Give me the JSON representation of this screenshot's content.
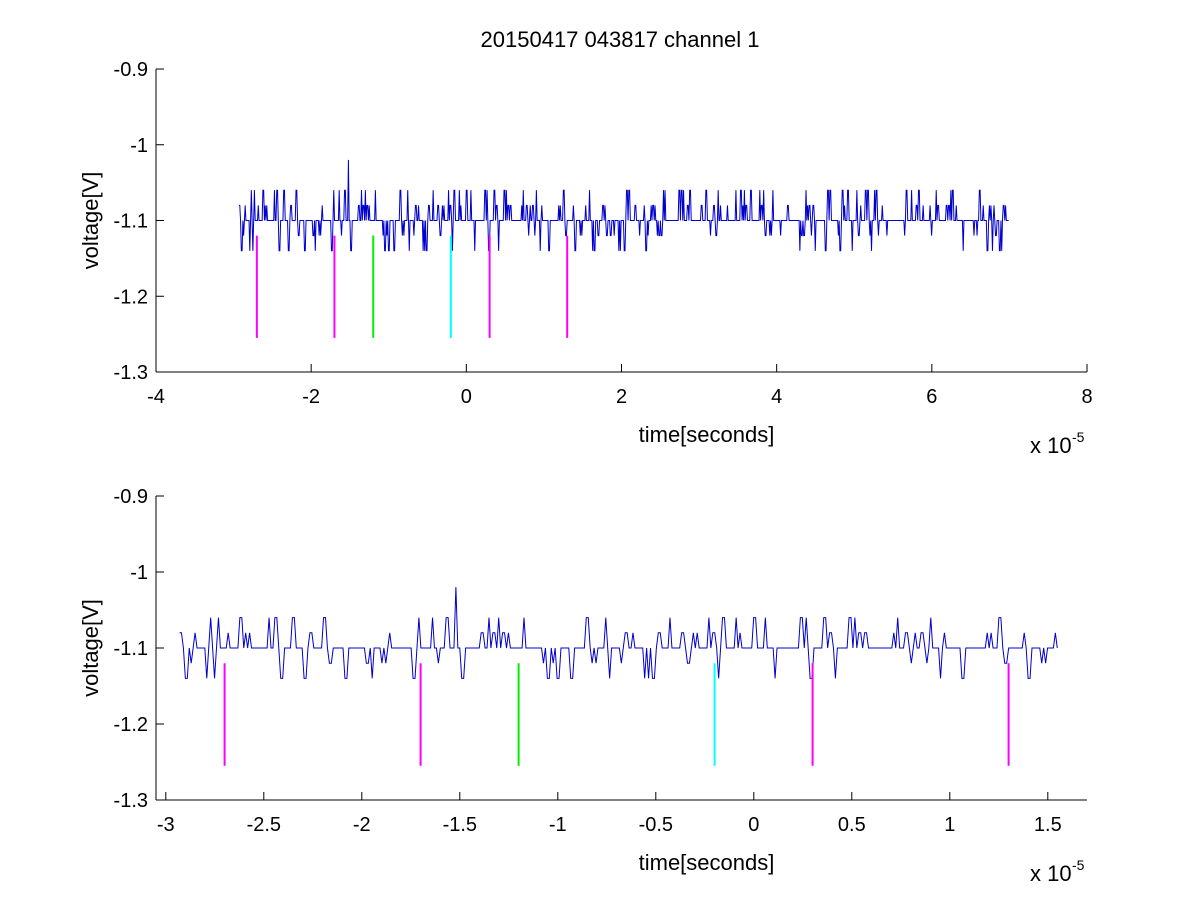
{
  "chart_data": [
    {
      "type": "line",
      "title": "20150417 043817 channel 1",
      "xlabel": "time[seconds]",
      "ylabel": "voltage[V]",
      "x_multiplier_label": {
        "base": "x 10",
        "exponent": "-5"
      },
      "xlim": [
        -4,
        8
      ],
      "ylim": [
        -1.3,
        -0.9
      ],
      "xticks": [
        -4,
        -2,
        0,
        2,
        4,
        6,
        8
      ],
      "xtick_labels": [
        "-4",
        "-2",
        "0",
        "2",
        "4",
        "6",
        "8"
      ],
      "yticks": [
        -1.3,
        -1.2,
        -1.1,
        -1.0,
        -0.9
      ],
      "ytick_labels": [
        "-1.3",
        "-1.2",
        "-1.1",
        "-1",
        "-0.9"
      ],
      "grid": false,
      "signal": {
        "color": "#0000cc",
        "x_range": [
          -2.93,
          7.0
        ],
        "baseline": -1.1,
        "levels": [
          -1.14,
          -1.12,
          -1.1,
          -1.08,
          -1.06
        ],
        "spike": {
          "x": -1.52,
          "y": -1.02
        }
      },
      "markers": [
        {
          "x": -2.7,
          "color": "#ff00ff",
          "y_top": -1.12,
          "y_bottom": -1.255
        },
        {
          "x": -1.7,
          "color": "#ff00ff",
          "y_top": -1.12,
          "y_bottom": -1.255
        },
        {
          "x": -1.2,
          "color": "#00ee00",
          "y_top": -1.12,
          "y_bottom": -1.255
        },
        {
          "x": -0.2,
          "color": "#00ffff",
          "y_top": -1.12,
          "y_bottom": -1.255
        },
        {
          "x": 0.3,
          "color": "#ff00ff",
          "y_top": -1.12,
          "y_bottom": -1.255
        },
        {
          "x": 1.3,
          "color": "#ff00ff",
          "y_top": -1.12,
          "y_bottom": -1.255
        }
      ]
    },
    {
      "type": "line",
      "xlabel": "time[seconds]",
      "ylabel": "voltage[V]",
      "x_multiplier_label": {
        "base": "x 10",
        "exponent": "-5"
      },
      "xlim": [
        -3.05,
        1.7
      ],
      "ylim": [
        -1.3,
        -0.9
      ],
      "xticks": [
        -3,
        -2.5,
        -2,
        -1.5,
        -1,
        -0.5,
        0,
        0.5,
        1,
        1.5
      ],
      "xtick_labels": [
        "-3",
        "-2.5",
        "-2",
        "-1.5",
        "-1",
        "-0.5",
        "0",
        "0.5",
        "1",
        "1.5"
      ],
      "yticks": [
        -1.3,
        -1.2,
        -1.1,
        -1.0,
        -0.9
      ],
      "ytick_labels": [
        "-1.3",
        "-1.2",
        "-1.1",
        "-1",
        "-0.9"
      ],
      "grid": false,
      "signal": {
        "color": "#0000cc",
        "x_range": [
          -2.93,
          1.55
        ],
        "baseline": -1.1,
        "levels": [
          -1.14,
          -1.12,
          -1.1,
          -1.08,
          -1.06
        ],
        "spike": {
          "x": -1.52,
          "y": -1.02
        }
      },
      "markers": [
        {
          "x": -2.7,
          "color": "#ff00ff",
          "y_top": -1.12,
          "y_bottom": -1.255
        },
        {
          "x": -1.7,
          "color": "#ff00ff",
          "y_top": -1.12,
          "y_bottom": -1.255
        },
        {
          "x": -1.2,
          "color": "#00ee00",
          "y_top": -1.12,
          "y_bottom": -1.255
        },
        {
          "x": -0.2,
          "color": "#00ffff",
          "y_top": -1.12,
          "y_bottom": -1.255
        },
        {
          "x": 0.3,
          "color": "#ff00ff",
          "y_top": -1.12,
          "y_bottom": -1.255
        },
        {
          "x": 1.3,
          "color": "#ff00ff",
          "y_top": -1.12,
          "y_bottom": -1.255
        }
      ]
    }
  ]
}
